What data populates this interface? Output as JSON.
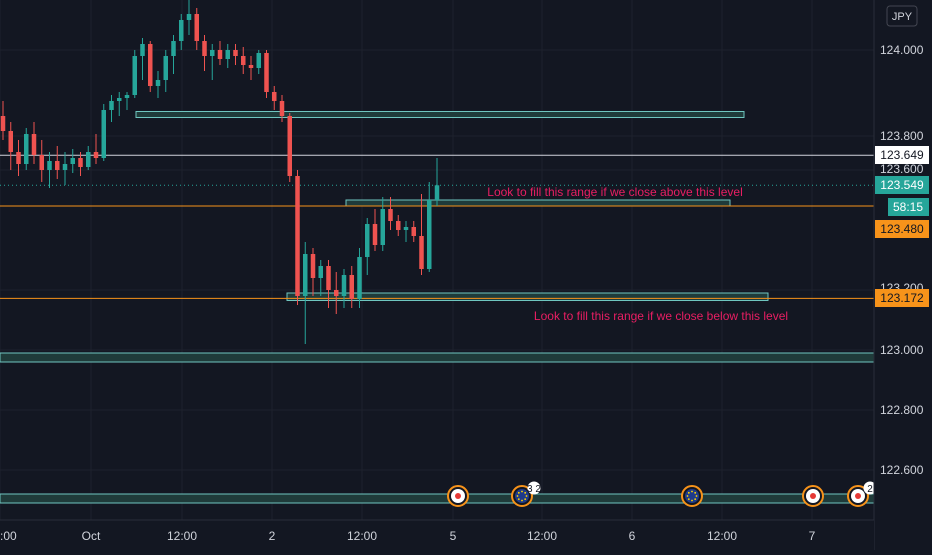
{
  "currency": "JPY",
  "colors": {
    "background": "#131722",
    "grid": "#1e222d",
    "up": "#26a69a",
    "down": "#ef5350",
    "zone_fill": "#1f3b3a",
    "zone_stroke": "#6fc6c0",
    "level_white": "#d1d4dc",
    "level_orange": "#f7931a",
    "annotation": "#e91e63",
    "axis_text": "#d1d4dc",
    "current_price_bg": "#26a69a"
  },
  "price_axis": {
    "ticks": [
      "124.000",
      "123.800",
      "123.600",
      "123.000",
      "122.800",
      "122.600"
    ],
    "labels": {
      "level_white": "123.649",
      "current": "123.549",
      "countdown": "58:15",
      "level_orange_upper": "123.480",
      "level_orange_lower": "123.172"
    },
    "hidden_tick": "123.200"
  },
  "time_axis": {
    "labels": [
      ":00",
      "Oct",
      "12:00",
      "2",
      "12:00",
      "5",
      "12:00",
      "6",
      "12:00",
      "7"
    ]
  },
  "annotations": {
    "upper": "Look to fill this range if we close above this level",
    "lower": "Look to fill this range if we close below this level"
  },
  "event_markers": [
    {
      "kind": "jp-flag",
      "icon": "japan-flag-icon"
    },
    {
      "kind": "eu-flag",
      "icon": "eu-flag-icon",
      "count": "3 2"
    },
    {
      "kind": "eu-flag",
      "icon": "eu-flag-icon"
    },
    {
      "kind": "jp-flag",
      "icon": "japan-flag-icon"
    },
    {
      "kind": "jp-flag",
      "icon": "japan-flag-icon",
      "count": "2"
    }
  ],
  "chart_data": {
    "type": "candlestick",
    "symbol_quote": "JPY",
    "ylim": [
      122.45,
      124.15
    ],
    "levels": [
      123.649,
      123.48,
      123.172
    ],
    "zones": [
      {
        "from": 123.775,
        "to": 123.795
      },
      {
        "from": 123.48,
        "to": 123.5
      },
      {
        "from": 123.165,
        "to": 123.19
      },
      {
        "from": 122.96,
        "to": 122.99
      },
      {
        "from": 122.49,
        "to": 122.52
      }
    ],
    "candles": [
      [
        123.78,
        123.83,
        123.7,
        123.73
      ],
      [
        123.73,
        123.76,
        123.6,
        123.66
      ],
      [
        123.66,
        123.7,
        123.58,
        123.62
      ],
      [
        123.62,
        123.74,
        123.6,
        123.72
      ],
      [
        123.72,
        123.76,
        123.62,
        123.65
      ],
      [
        123.65,
        123.7,
        123.56,
        123.6
      ],
      [
        123.6,
        123.66,
        123.54,
        123.63
      ],
      [
        123.63,
        123.68,
        123.57,
        123.6
      ],
      [
        123.6,
        123.66,
        123.55,
        123.62
      ],
      [
        123.62,
        123.67,
        123.59,
        123.64
      ],
      [
        123.64,
        123.66,
        123.58,
        123.61
      ],
      [
        123.61,
        123.68,
        123.6,
        123.66
      ],
      [
        123.66,
        123.72,
        123.62,
        123.64
      ],
      [
        123.64,
        123.82,
        123.63,
        123.8
      ],
      [
        123.8,
        123.85,
        123.76,
        123.83
      ],
      [
        123.83,
        123.86,
        123.78,
        123.84
      ],
      [
        123.84,
        123.86,
        123.8,
        123.85
      ],
      [
        123.85,
        124.0,
        123.84,
        123.98
      ],
      [
        123.98,
        124.04,
        123.9,
        124.02
      ],
      [
        124.02,
        124.03,
        123.86,
        123.88
      ],
      [
        123.88,
        123.93,
        123.84,
        123.9
      ],
      [
        123.9,
        124.0,
        123.86,
        123.98
      ],
      [
        123.98,
        124.05,
        123.92,
        124.03
      ],
      [
        124.03,
        124.12,
        124.0,
        124.1
      ],
      [
        124.1,
        124.18,
        124.05,
        124.12
      ],
      [
        124.12,
        124.14,
        124.0,
        124.03
      ],
      [
        124.03,
        124.05,
        123.93,
        123.98
      ],
      [
        123.98,
        124.02,
        123.9,
        124.0
      ],
      [
        124.0,
        124.03,
        123.95,
        123.97
      ],
      [
        123.97,
        124.02,
        123.94,
        124.0
      ],
      [
        124.0,
        124.02,
        123.95,
        123.98
      ],
      [
        123.98,
        124.01,
        123.92,
        123.95
      ],
      [
        123.95,
        123.98,
        123.9,
        123.94
      ],
      [
        123.94,
        124.0,
        123.92,
        123.99
      ],
      [
        123.99,
        124.0,
        123.84,
        123.86
      ],
      [
        123.86,
        123.88,
        123.8,
        123.83
      ],
      [
        123.83,
        123.85,
        123.76,
        123.78
      ],
      [
        123.78,
        123.79,
        123.56,
        123.58
      ],
      [
        123.58,
        123.6,
        123.15,
        123.18
      ],
      [
        123.18,
        123.36,
        123.02,
        123.32
      ],
      [
        123.32,
        123.34,
        123.18,
        123.24
      ],
      [
        123.24,
        123.3,
        123.18,
        123.28
      ],
      [
        123.28,
        123.3,
        123.14,
        123.2
      ],
      [
        123.2,
        123.26,
        123.12,
        123.18
      ],
      [
        123.18,
        123.27,
        123.14,
        123.25
      ],
      [
        123.25,
        123.28,
        123.14,
        123.17
      ],
      [
        123.17,
        123.34,
        123.14,
        123.31
      ],
      [
        123.31,
        123.44,
        123.25,
        123.42
      ],
      [
        123.42,
        123.47,
        123.33,
        123.35
      ],
      [
        123.35,
        123.51,
        123.33,
        123.47
      ],
      [
        123.47,
        123.51,
        123.4,
        123.43
      ],
      [
        123.43,
        123.45,
        123.38,
        123.4
      ],
      [
        123.4,
        123.43,
        123.36,
        123.41
      ],
      [
        123.41,
        123.43,
        123.36,
        123.38
      ],
      [
        123.38,
        123.52,
        123.25,
        123.27
      ],
      [
        123.27,
        123.56,
        123.26,
        123.5
      ],
      [
        123.5,
        123.64,
        123.48,
        123.549
      ]
    ]
  }
}
